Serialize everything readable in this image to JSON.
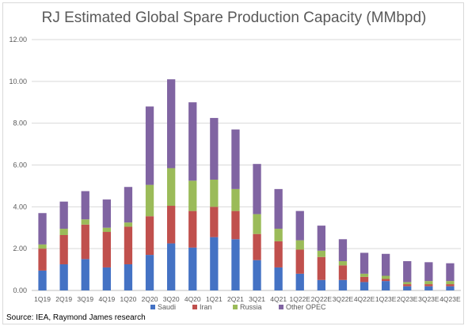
{
  "chart_data": {
    "type": "bar",
    "stacked": true,
    "title": "RJ Estimated Global Spare Production Capacity (MMbpd)",
    "source": "Source: IEA, Raymond James research",
    "categories": [
      "1Q19",
      "2Q19",
      "3Q19",
      "4Q19",
      "1Q20",
      "2Q20",
      "3Q20",
      "4Q20",
      "1Q21",
      "2Q21",
      "3Q21",
      "4Q21",
      "1Q22E",
      "2Q22E",
      "3Q22E",
      "4Q22E",
      "1Q23E",
      "2Q23E",
      "3Q23E",
      "4Q23E"
    ],
    "ylim": [
      0,
      12
    ],
    "yticks": [
      "0.00",
      "2.00",
      "4.00",
      "6.00",
      "8.00",
      "10.00",
      "12.00"
    ],
    "grid": true,
    "legend_position": "bottom",
    "series": [
      {
        "name": "Saudi",
        "color": "#4472c4",
        "values": [
          0.95,
          1.25,
          1.5,
          1.1,
          1.25,
          1.7,
          2.25,
          2.05,
          2.55,
          2.45,
          1.45,
          1.1,
          0.8,
          0.5,
          0.5,
          0.4,
          0.45,
          0.2,
          0.2,
          0.2
        ]
      },
      {
        "name": "Iran",
        "color": "#c0504d",
        "values": [
          1.05,
          1.4,
          1.65,
          1.7,
          1.8,
          1.85,
          1.8,
          1.75,
          1.45,
          1.35,
          1.25,
          1.25,
          1.15,
          1.1,
          0.7,
          0.25,
          0.1,
          0.1,
          0.1,
          0.1
        ]
      },
      {
        "name": "Russia",
        "color": "#9bbb59",
        "values": [
          0.2,
          0.3,
          0.25,
          0.2,
          0.2,
          1.5,
          1.8,
          1.45,
          1.3,
          1.05,
          0.95,
          0.6,
          0.45,
          0.3,
          0.2,
          0.15,
          0.15,
          0.1,
          0.15,
          0.15
        ]
      },
      {
        "name": "Other OPEC",
        "color": "#8064a2",
        "values": [
          1.5,
          1.3,
          1.35,
          1.35,
          1.7,
          3.75,
          4.25,
          3.75,
          2.95,
          2.85,
          2.4,
          1.9,
          1.4,
          1.2,
          1.05,
          1.0,
          1.05,
          1.0,
          0.9,
          0.85
        ]
      }
    ]
  }
}
